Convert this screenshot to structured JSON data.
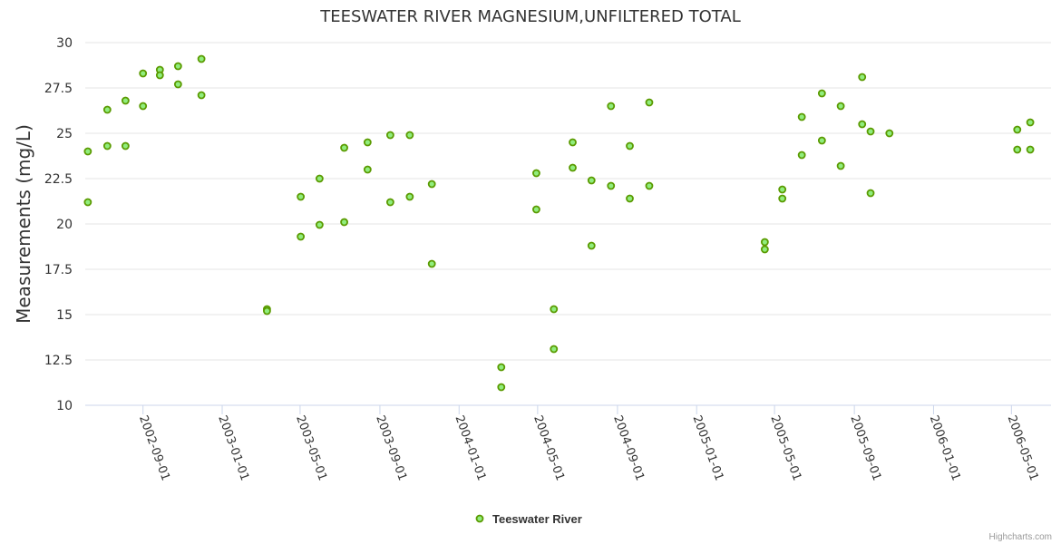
{
  "chart_data": {
    "type": "scatter",
    "title": "TEESWATER RIVER MAGNESIUM,UNFILTERED TOTAL",
    "ylabel": "Measurements (mg/L)",
    "xlabel": "",
    "ylim": [
      10,
      30
    ],
    "xlim": [
      "2002-06-04",
      "2006-07-01"
    ],
    "yticks": [
      10,
      12.5,
      15,
      17.5,
      20,
      22.5,
      25,
      27.5,
      30
    ],
    "ytick_labels": [
      "10",
      "12.5",
      "15",
      "17.5",
      "20",
      "22.5",
      "25",
      "27.5",
      "30"
    ],
    "xticks": [
      "2002-09-01",
      "2003-01-01",
      "2003-05-01",
      "2003-09-01",
      "2004-01-01",
      "2004-05-01",
      "2004-09-01",
      "2005-01-01",
      "2005-05-01",
      "2005-09-01",
      "2006-01-01",
      "2006-05-01"
    ],
    "grid": true,
    "legend_position": "bottom-center",
    "color": "#90ed7d",
    "marker_stroke": "#5a9a00",
    "series": [
      {
        "name": "Teeswater River",
        "points": [
          [
            "2002-06-08",
            24.0
          ],
          [
            "2002-06-08",
            21.2
          ],
          [
            "2002-07-08",
            26.3
          ],
          [
            "2002-07-08",
            24.3
          ],
          [
            "2002-08-05",
            26.8
          ],
          [
            "2002-08-05",
            24.3
          ],
          [
            "2002-09-01",
            28.3
          ],
          [
            "2002-09-01",
            26.5
          ],
          [
            "2002-09-27",
            28.5
          ],
          [
            "2002-09-27",
            28.2
          ],
          [
            "2002-10-25",
            28.7
          ],
          [
            "2002-10-25",
            27.7
          ],
          [
            "2002-11-30",
            29.1
          ],
          [
            "2002-11-30",
            27.1
          ],
          [
            "2003-03-11",
            15.3
          ],
          [
            "2003-03-11",
            15.2
          ],
          [
            "2003-05-02",
            21.5
          ],
          [
            "2003-05-02",
            19.3
          ],
          [
            "2003-05-31",
            22.5
          ],
          [
            "2003-05-31",
            19.95
          ],
          [
            "2003-07-08",
            24.2
          ],
          [
            "2003-07-08",
            20.1
          ],
          [
            "2003-08-13",
            24.5
          ],
          [
            "2003-08-13",
            23.0
          ],
          [
            "2003-09-17",
            24.9
          ],
          [
            "2003-09-17",
            21.2
          ],
          [
            "2003-10-17",
            24.9
          ],
          [
            "2003-10-17",
            21.5
          ],
          [
            "2003-11-20",
            22.2
          ],
          [
            "2003-11-20",
            17.8
          ],
          [
            "2004-03-06",
            12.1
          ],
          [
            "2004-03-06",
            11.0
          ],
          [
            "2004-04-29",
            22.8
          ],
          [
            "2004-04-29",
            20.8
          ],
          [
            "2004-05-26",
            15.3
          ],
          [
            "2004-05-26",
            13.1
          ],
          [
            "2004-06-24",
            24.5
          ],
          [
            "2004-06-24",
            23.1
          ],
          [
            "2004-07-23",
            22.4
          ],
          [
            "2004-07-23",
            18.8
          ],
          [
            "2004-08-22",
            26.5
          ],
          [
            "2004-08-22",
            22.1
          ],
          [
            "2004-09-20",
            24.3
          ],
          [
            "2004-09-20",
            21.4
          ],
          [
            "2004-10-20",
            26.7
          ],
          [
            "2004-10-20",
            22.1
          ],
          [
            "2005-04-16",
            19.0
          ],
          [
            "2005-04-16",
            18.6
          ],
          [
            "2005-05-13",
            21.9
          ],
          [
            "2005-05-13",
            21.4
          ],
          [
            "2005-06-12",
            25.9
          ],
          [
            "2005-06-12",
            23.8
          ],
          [
            "2005-07-13",
            27.2
          ],
          [
            "2005-07-13",
            24.6
          ],
          [
            "2005-08-11",
            26.5
          ],
          [
            "2005-08-11",
            23.2
          ],
          [
            "2005-09-13",
            28.1
          ],
          [
            "2005-09-13",
            25.5
          ],
          [
            "2005-09-26",
            25.1
          ],
          [
            "2005-09-26",
            21.7
          ],
          [
            "2005-10-25",
            25.0
          ],
          [
            "2006-05-10",
            25.2
          ],
          [
            "2006-05-10",
            24.1
          ],
          [
            "2006-05-30",
            25.6
          ],
          [
            "2006-05-30",
            24.1
          ]
        ]
      }
    ],
    "credits": "Highcharts.com"
  }
}
